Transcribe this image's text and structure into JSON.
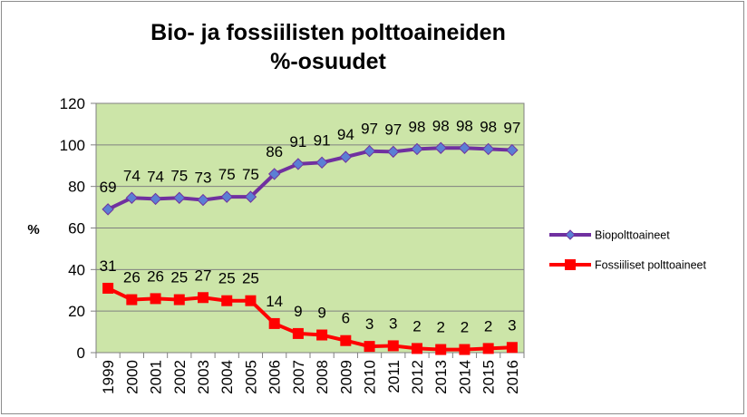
{
  "chart_data": {
    "type": "line",
    "title": "Bio- ja fossiilisten polttoaineiden\n%-osuudet",
    "xlabel": "",
    "ylabel": "%",
    "x": [
      "1999",
      "2000",
      "2001",
      "2002",
      "2003",
      "2004",
      "2005",
      "2006",
      "2007",
      "2008",
      "2009",
      "2010",
      "2011",
      "2012",
      "2013",
      "2014",
      "2015",
      "2016"
    ],
    "ylim": [
      0,
      120
    ],
    "yticks": [
      0,
      20,
      40,
      60,
      80,
      100,
      120
    ],
    "grid": true,
    "plot_background": "#cce5a8",
    "legend_position": "right",
    "series": [
      {
        "name": "Biopolttoaineet",
        "color": "#7030a0",
        "marker_color": "#5b7fd4",
        "marker": "diamond",
        "values": [
          69,
          74.5,
          74,
          74.5,
          73.5,
          75,
          75,
          86,
          90.8,
          91.5,
          94.2,
          97,
          96.7,
          98,
          98.5,
          98.5,
          98,
          97.5
        ],
        "labels": [
          "69",
          "74",
          "74",
          "75",
          "73",
          "75",
          "75",
          "86",
          "91",
          "91",
          "94",
          "97",
          "97",
          "98",
          "98",
          "98",
          "98",
          "97"
        ]
      },
      {
        "name": "Fossiiliset polttoaineet",
        "color": "#ff0000",
        "marker_color": "#ff0000",
        "marker": "square",
        "values": [
          31,
          25.5,
          26,
          25.5,
          26.5,
          25,
          25,
          14,
          9.2,
          8.5,
          5.8,
          3,
          3.3,
          2,
          1.5,
          1.5,
          2,
          2.5
        ],
        "labels": [
          "31",
          "26",
          "26",
          "25",
          "27",
          "25",
          "25",
          "14",
          "9",
          "9",
          "6",
          "3",
          "3",
          "2",
          "2",
          "2",
          "2",
          "3"
        ]
      }
    ]
  }
}
